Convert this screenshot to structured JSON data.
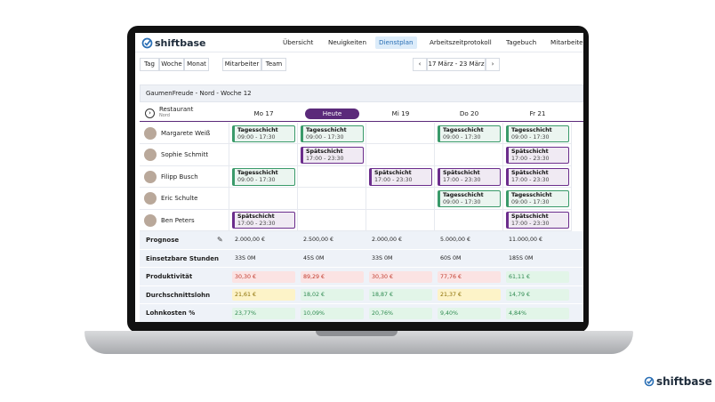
{
  "brand": "shiftbase",
  "nav": [
    {
      "label": "Übersicht"
    },
    {
      "label": "Neuigkeiten"
    },
    {
      "label": "Dienstplan",
      "active": true
    },
    {
      "label": "Arbeitszeitprotokoll"
    },
    {
      "label": "Tagebuch"
    },
    {
      "label": "Mitarbeite"
    }
  ],
  "view_tabs": [
    "Tag",
    "Woche",
    "Monat"
  ],
  "group_tabs": [
    "Mitarbeiter",
    "Team"
  ],
  "date_range": "17 März - 23 März",
  "schedule_title": "GaumenFreude - Nord - Woche 12",
  "location": {
    "name": "Restaurant",
    "sub": "Nord"
  },
  "days": [
    {
      "label": "Mo 17"
    },
    {
      "label": "Heute",
      "current": true
    },
    {
      "label": "Mi 19"
    },
    {
      "label": "Do 20"
    },
    {
      "label": "Fr 21"
    }
  ],
  "employees": [
    {
      "name": "Margarete Weiß",
      "shifts": [
        {
          "label": "Tagesschicht",
          "time": "09:00 - 17:30",
          "color": "#3a9a6a"
        },
        {
          "label": "Tagesschicht",
          "time": "09:00 - 17:30",
          "color": "#3a9a6a"
        },
        null,
        {
          "label": "Tagesschicht",
          "time": "09:00 - 17:30",
          "color": "#3a9a6a"
        },
        {
          "label": "Tagesschicht",
          "time": "09:00 - 17:30",
          "color": "#3a9a6a"
        }
      ]
    },
    {
      "name": "Sophie Schmitt",
      "shifts": [
        null,
        {
          "label": "Spätschicht",
          "time": "17:00 - 23:30",
          "color": "#6b2d8c"
        },
        null,
        null,
        {
          "label": "Spätschicht",
          "time": "17:00 - 23:30",
          "color": "#6b2d8c"
        }
      ]
    },
    {
      "name": "Filipp Busch",
      "shifts": [
        {
          "label": "Tagesschicht",
          "time": "09:00 - 17:30",
          "color": "#3a9a6a"
        },
        null,
        {
          "label": "Spätschicht",
          "time": "17:00 - 23:30",
          "color": "#6b2d8c"
        },
        {
          "label": "Spätschicht",
          "time": "17:00 - 23:30",
          "color": "#6b2d8c"
        },
        {
          "label": "Spätschicht",
          "time": "17:00 - 23:30",
          "color": "#6b2d8c"
        }
      ]
    },
    {
      "name": "Eric Schulte",
      "shifts": [
        null,
        null,
        null,
        {
          "label": "Tagesschicht",
          "time": "09:00 - 17:30",
          "color": "#3a9a6a"
        },
        {
          "label": "Tagesschicht",
          "time": "09:00 - 17:30",
          "color": "#3a9a6a"
        }
      ]
    },
    {
      "name": "Ben Peters",
      "shifts": [
        {
          "label": "Spätschicht",
          "time": "17:00 - 23:30",
          "color": "#6b2d8c"
        },
        null,
        null,
        null,
        {
          "label": "Spätschicht",
          "time": "17:00 - 23:30",
          "color": "#6b2d8c"
        }
      ]
    }
  ],
  "metrics": [
    {
      "label": "Prognose",
      "cells": [
        {
          "text": "2.000,00 €"
        },
        {
          "text": "2.500,00 €"
        },
        {
          "text": "2.000,00 €"
        },
        {
          "text": "5.000,00 €"
        },
        {
          "text": "11.000,00 €"
        }
      ]
    },
    {
      "label": "Einsetzbare Stunden",
      "cells": [
        {
          "text": "33S 0M"
        },
        {
          "text": "45S 0M"
        },
        {
          "text": "33S 0M"
        },
        {
          "text": "60S 0M"
        },
        {
          "text": "185S 0M"
        }
      ]
    },
    {
      "label": "Produktivität",
      "cells": [
        {
          "text": "30,30 €",
          "color": "#c0392b",
          "background": "#fbe3e3"
        },
        {
          "text": "89,29 €",
          "color": "#c0392b",
          "background": "#fbe3e3"
        },
        {
          "text": "30,30 €",
          "color": "#c0392b",
          "background": "#fbe3e3"
        },
        {
          "text": "77,76 €",
          "color": "#c0392b",
          "background": "#fbe3e3"
        },
        {
          "text": "61,11 €",
          "color": "#2e8a50",
          "background": "#e2f5e8"
        }
      ]
    },
    {
      "label": "Durchschnittslohn",
      "cells": [
        {
          "text": "21,61 €",
          "color": "#8a6d00",
          "background": "#fdf3c8"
        },
        {
          "text": "18,02 €",
          "color": "#2e8a50",
          "background": "#e2f5e8"
        },
        {
          "text": "18,87 €",
          "color": "#2e8a50",
          "background": "#e2f5e8"
        },
        {
          "text": "21,37 €",
          "color": "#8a6d00",
          "background": "#fdf3c8"
        },
        {
          "text": "14,79 €",
          "color": "#2e8a50",
          "background": "#e2f5e8"
        }
      ]
    },
    {
      "label": "Lohnkosten %",
      "cells": [
        {
          "text": "23,77%",
          "color": "#2e8a50",
          "background": "#e2f5e8"
        },
        {
          "text": "10,09%",
          "color": "#2e8a50",
          "background": "#e2f5e8"
        },
        {
          "text": "20,76%",
          "color": "#2e8a50",
          "background": "#e2f5e8"
        },
        {
          "text": "9,40%",
          "color": "#2e8a50",
          "background": "#e2f5e8"
        },
        {
          "text": "4,84%",
          "color": "#2e8a50",
          "background": "#e2f5e8"
        }
      ]
    }
  ],
  "footer_brand": "shiftbase"
}
